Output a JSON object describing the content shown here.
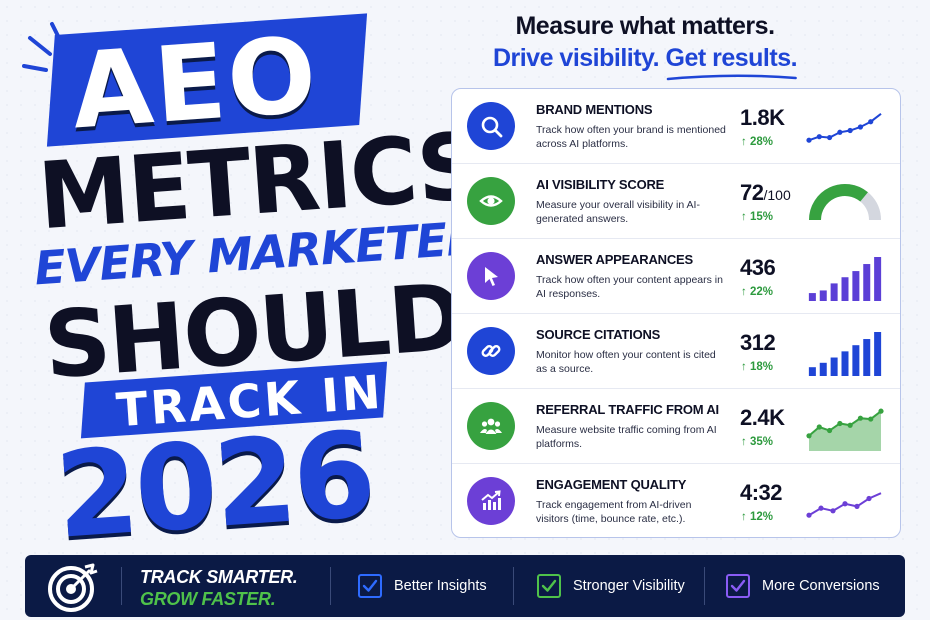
{
  "headline": {
    "line1": "AEO",
    "line2": "METRICS",
    "line3": "EVERY MARKETER",
    "line4": "SHOULD",
    "line5": "TRACK IN",
    "line6": "2026"
  },
  "tagline": {
    "line1": "Measure what matters.",
    "line2_part1": "Drive visibility.",
    "line2_part2": "Get results."
  },
  "colors": {
    "brand_blue": "#1f45d6",
    "navy": "#0b1a45",
    "green": "#4fc24a",
    "purple": "#6c3fd6"
  },
  "metrics": [
    {
      "title": "BRAND MENTIONS",
      "description": "Track how often your brand is mentioned across AI platforms.",
      "value": "1.8K",
      "suffix": "",
      "change": "↑ 28%",
      "icon": "search-icon",
      "icon_color": "#1f45d6",
      "chart": "line",
      "chart_color": "#1f45d6",
      "trend": [
        20,
        28,
        26,
        38,
        42,
        50,
        62,
        80
      ]
    },
    {
      "title": "AI VISIBILITY SCORE",
      "description": "Measure your overall visibility in AI-generated answers.",
      "value": "72",
      "suffix": "/100",
      "change": "↑ 15%",
      "icon": "eye-icon",
      "icon_color": "#37a240",
      "chart": "gauge",
      "chart_color": "#37a240",
      "score": 72,
      "max": 100
    },
    {
      "title": "ANSWER APPEARANCES",
      "description": "Track how often your content appears in AI responses.",
      "value": "436",
      "suffix": "",
      "change": "↑ 22%",
      "icon": "cursor-icon",
      "icon_color": "#6c3fd6",
      "chart": "bars",
      "chart_color": "#5b3fd6",
      "trend": [
        18,
        24,
        40,
        54,
        68,
        84,
        100
      ]
    },
    {
      "title": "SOURCE CITATIONS",
      "description": "Monitor how often your content is cited as a source.",
      "value": "312",
      "suffix": "",
      "change": "↑ 18%",
      "icon": "link-icon",
      "icon_color": "#1f45d6",
      "chart": "bars",
      "chart_color": "#1f45d6",
      "trend": [
        20,
        30,
        42,
        56,
        70,
        84,
        100
      ]
    },
    {
      "title": "REFERRAL TRAFFIC FROM AI",
      "description": "Measure website traffic coming from AI platforms.",
      "value": "2.4K",
      "suffix": "",
      "change": "↑ 35%",
      "icon": "users-icon",
      "icon_color": "#37a240",
      "chart": "area",
      "chart_color": "#37a240",
      "trend": [
        30,
        50,
        42,
        58,
        54,
        70,
        68,
        86
      ]
    },
    {
      "title": "ENGAGEMENT QUALITY",
      "description": "Track engagement from AI-driven visitors (time, bounce rate, etc.).",
      "value": "4:32",
      "suffix": "",
      "change": "↑ 12%",
      "icon": "growth-chart-icon",
      "icon_color": "#6c3fd6",
      "chart": "line",
      "chart_color": "#6c3fd6",
      "trend": [
        20,
        36,
        30,
        46,
        40,
        58,
        70
      ]
    }
  ],
  "footer": {
    "slogan_line1": "TRACK SMARTER.",
    "slogan_line2": "GROW FASTER.",
    "features": [
      {
        "label": "Better Insights",
        "color": "#2e6bff"
      },
      {
        "label": "Stronger Visibility",
        "color": "#4fc24a"
      },
      {
        "label": "More Conversions",
        "color": "#8a5cf5"
      }
    ]
  }
}
